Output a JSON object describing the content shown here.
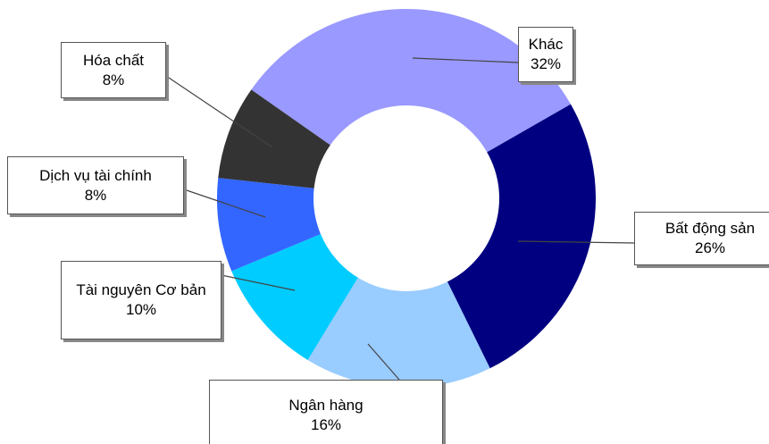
{
  "chart_data": {
    "type": "donut",
    "categories": [
      "Khác",
      "Bất động sản",
      "Ngân hàng",
      "Tài nguyên Cơ bản",
      "Dịch vụ tài chính",
      "Hóa chất"
    ],
    "values": [
      32,
      26,
      16,
      10,
      8,
      8
    ],
    "value_labels": [
      "32%",
      "26%",
      "16%",
      "10%",
      "8%",
      "8%"
    ],
    "colors": [
      "#9999ff",
      "#000080",
      "#99ccff",
      "#00ccff",
      "#3366ff",
      "#333333"
    ]
  }
}
